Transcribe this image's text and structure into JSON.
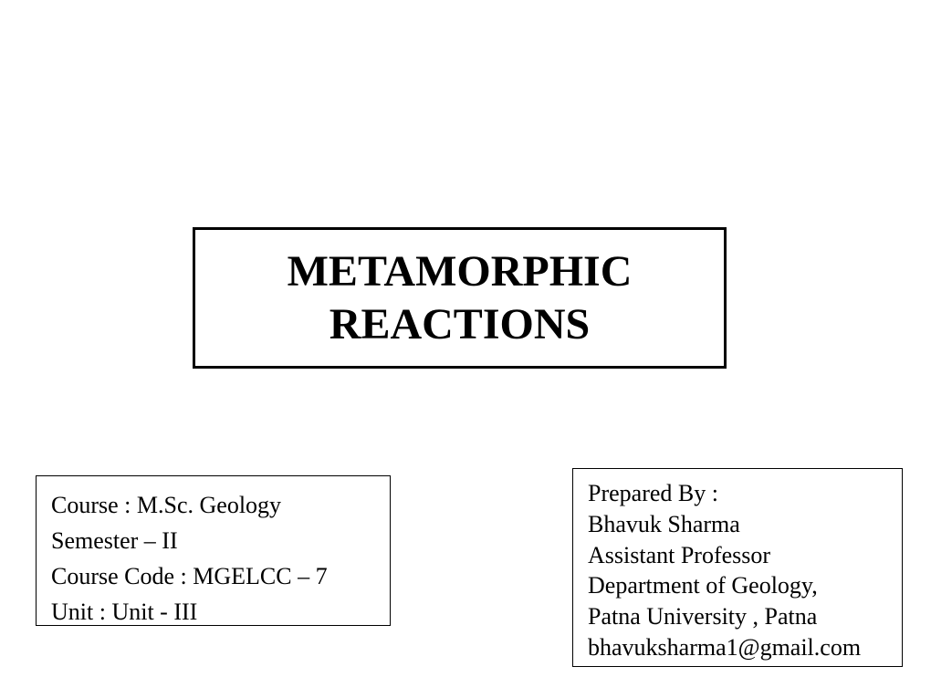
{
  "title": {
    "line1": "METAMORPHIC",
    "line2": "REACTIONS"
  },
  "course": {
    "course_label": "Course : M.Sc. Geology",
    "semester": "Semester – II",
    "course_code": "Course Code : MGELCC – 7",
    "unit": "Unit :  Unit - III"
  },
  "prepared": {
    "prepared_by": "Prepared By :",
    "name": "Bhavuk Sharma",
    "designation": "Assistant Professor",
    "department": "Department of Geology,",
    "university": "Patna University , Patna",
    "email": "bhavuksharma1@gmail.com"
  },
  "styles": {
    "background_color": "#ffffff",
    "text_color": "#000000",
    "title_fontsize": 48,
    "body_fontsize": 26,
    "title_border_width": 3,
    "info_border_width": 1
  }
}
